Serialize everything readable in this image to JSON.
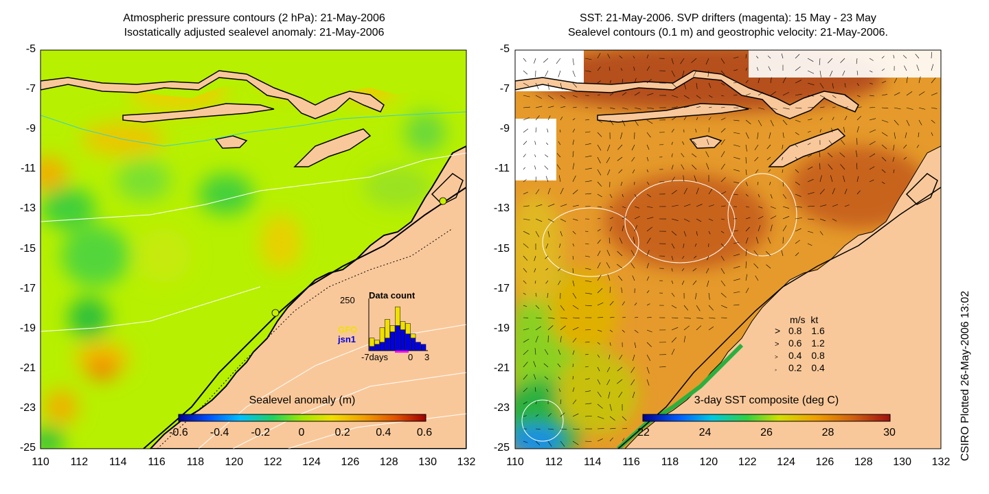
{
  "left_panel": {
    "title_line1": "Atmospheric pressure contours (2 hPa): 21-May-2006",
    "title_line2": "Isostatically adjusted sealevel anomaly: 21-May-2006",
    "colorbar_title": "Sealevel anomaly (m)",
    "colorbar_ticks": [
      "-0.6",
      "-0.4",
      "-0.2",
      "0",
      "0.2",
      "0.4",
      "0.6"
    ],
    "inset": {
      "title": "Data count",
      "ymax_label": "250",
      "series1": "GFO",
      "series2": "jsn1",
      "x_label_left": "-7days",
      "x_label_zero": "0",
      "x_label_right": "3",
      "gfo_counts": [
        40,
        20,
        70,
        90,
        30,
        90,
        40,
        50,
        20,
        0,
        0
      ],
      "jsn1_counts": [
        20,
        30,
        40,
        60,
        90,
        120,
        100,
        80,
        60,
        40,
        30
      ]
    }
  },
  "right_panel": {
    "title_line1": "SST: 21-May-2006. SVP drifters (magenta): 15 May - 23 May",
    "title_line2": "Sealevel contours (0.1 m) and geostrophic velocity: 21-May-2006.",
    "colorbar_title": "3-day SST composite (deg C)",
    "colorbar_ticks": [
      "22",
      "24",
      "26",
      "28",
      "30"
    ],
    "velocity_legend": {
      "header_ms": "m/s",
      "header_kt": "kt",
      "rows": [
        {
          "ms": "0.8",
          "kt": "1.6"
        },
        {
          "ms": "0.6",
          "kt": "1.2"
        },
        {
          "ms": "0.4",
          "kt": "0.8"
        },
        {
          "ms": "0.2",
          "kt": "0.4"
        }
      ]
    }
  },
  "y_ticks": [
    "-5",
    "-7",
    "-9",
    "-11",
    "-13",
    "-15",
    "-17",
    "-19",
    "-21",
    "-23",
    "-25"
  ],
  "x_ticks": [
    "110",
    "112",
    "114",
    "116",
    "118",
    "120",
    "122",
    "124",
    "126",
    "128",
    "130",
    "132"
  ],
  "footer": "CSIRO Plotted 26-May-2006 13:02",
  "colors": {
    "land": "#f9c89a",
    "ssla_background": "#b7f000",
    "sst_background": "#e59a2b",
    "coast": "#000000"
  }
}
